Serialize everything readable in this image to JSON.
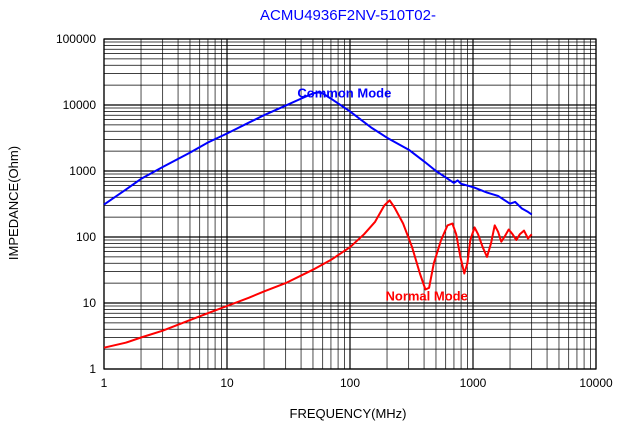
{
  "chart_data": {
    "type": "line",
    "title": "ACMU4936F2NV-510T02-",
    "title_color": "#0000ff",
    "xlabel": "FREQUENCY(MHz)",
    "ylabel": "IMPEDANCE(Ohm)",
    "x_scale": "log",
    "y_scale": "log",
    "xlim": [
      1,
      10000
    ],
    "ylim": [
      1,
      100000
    ],
    "x_ticks": [
      "1",
      "10",
      "100",
      "1000",
      "10000"
    ],
    "y_ticks": [
      "100000",
      "10000",
      "1000",
      "100",
      "10",
      "1"
    ],
    "grid": true,
    "series": [
      {
        "name": "Common Mode",
        "color": "#0000ff",
        "points": [
          [
            1,
            310
          ],
          [
            1.5,
            520
          ],
          [
            2,
            760
          ],
          [
            3,
            1150
          ],
          [
            5,
            1900
          ],
          [
            7,
            2700
          ],
          [
            10,
            3700
          ],
          [
            15,
            5400
          ],
          [
            20,
            7000
          ],
          [
            30,
            9800
          ],
          [
            40,
            12500
          ],
          [
            50,
            15000
          ],
          [
            55,
            15500
          ],
          [
            60,
            15000
          ],
          [
            70,
            12500
          ],
          [
            100,
            8000
          ],
          [
            150,
            4500
          ],
          [
            200,
            3200
          ],
          [
            300,
            2100
          ],
          [
            400,
            1400
          ],
          [
            500,
            1000
          ],
          [
            600,
            800
          ],
          [
            700,
            660
          ],
          [
            750,
            720
          ],
          [
            800,
            640
          ],
          [
            900,
            600
          ],
          [
            1000,
            570
          ],
          [
            1300,
            470
          ],
          [
            1600,
            420
          ],
          [
            2000,
            320
          ],
          [
            2200,
            340
          ],
          [
            2500,
            270
          ],
          [
            2800,
            240
          ],
          [
            3000,
            220
          ]
        ]
      },
      {
        "name": "Normal Mode",
        "color": "#ff0000",
        "points": [
          [
            1,
            2.1
          ],
          [
            1.5,
            2.5
          ],
          [
            2,
            3
          ],
          [
            3,
            3.8
          ],
          [
            5,
            5.5
          ],
          [
            7,
            7
          ],
          [
            10,
            9
          ],
          [
            15,
            12
          ],
          [
            20,
            15
          ],
          [
            30,
            20
          ],
          [
            50,
            32
          ],
          [
            70,
            45
          ],
          [
            100,
            70
          ],
          [
            130,
            110
          ],
          [
            160,
            170
          ],
          [
            190,
            300
          ],
          [
            210,
            360
          ],
          [
            230,
            280
          ],
          [
            270,
            160
          ],
          [
            320,
            70
          ],
          [
            370,
            28
          ],
          [
            410,
            16
          ],
          [
            440,
            17
          ],
          [
            480,
            40
          ],
          [
            550,
            90
          ],
          [
            620,
            150
          ],
          [
            680,
            160
          ],
          [
            730,
            110
          ],
          [
            790,
            50
          ],
          [
            850,
            28
          ],
          [
            900,
            40
          ],
          [
            950,
            90
          ],
          [
            1030,
            140
          ],
          [
            1100,
            110
          ],
          [
            1200,
            70
          ],
          [
            1300,
            50
          ],
          [
            1400,
            80
          ],
          [
            1500,
            150
          ],
          [
            1600,
            120
          ],
          [
            1700,
            85
          ],
          [
            1800,
            100
          ],
          [
            1950,
            130
          ],
          [
            2100,
            110
          ],
          [
            2250,
            90
          ],
          [
            2400,
            110
          ],
          [
            2600,
            125
          ],
          [
            2800,
            95
          ],
          [
            3000,
            110
          ]
        ]
      }
    ],
    "annotations": [
      {
        "text": "Common Mode",
        "color": "#0000ff",
        "at": [
          90,
          13000
        ]
      },
      {
        "text": "Normal Mode",
        "color": "#ff0000",
        "at": [
          420,
          11
        ]
      }
    ]
  }
}
